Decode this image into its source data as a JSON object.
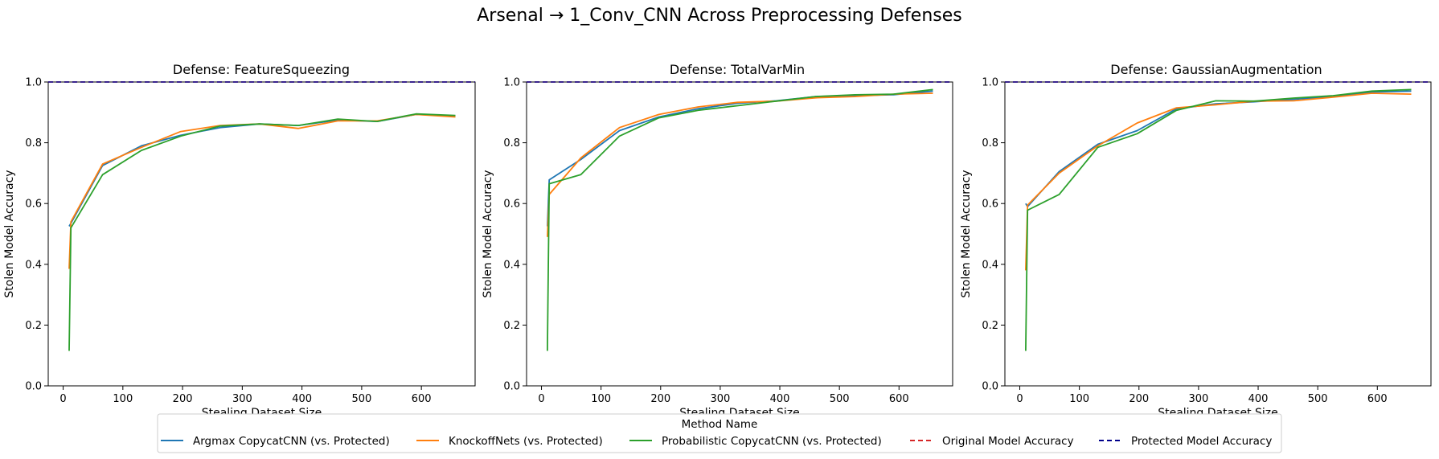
{
  "figure": {
    "title": "Arsenal → 1_Conv_CNN Across Preprocessing Defenses"
  },
  "legend": {
    "title": "Method Name",
    "placement": "bottom-center",
    "entries": [
      {
        "label": "Argmax CopycatCNN (vs. Protected)",
        "color": "#1f77b4",
        "style": "solid"
      },
      {
        "label": "KnockoffNets (vs. Protected)",
        "color": "#ff7f0e",
        "style": "solid"
      },
      {
        "label": "Probabilistic CopycatCNN (vs. Protected)",
        "color": "#2ca02c",
        "style": "solid"
      },
      {
        "label": "Original Model Accuracy",
        "color": "#d62728",
        "style": "dashed"
      },
      {
        "label": "Protected Model Accuracy",
        "color": "#00008b",
        "style": "dashed"
      }
    ]
  },
  "chart_data": [
    {
      "type": "line",
      "title": "Defense: FeatureSqueezing",
      "xlabel": "Stealing Dataset Size",
      "ylabel": "Stolen Model Accuracy",
      "xlim": [
        -25,
        690
      ],
      "ylim": [
        0.0,
        1.0
      ],
      "xticks": [
        "0",
        "100",
        "200",
        "300",
        "400",
        "500",
        "600"
      ],
      "yticks": [
        "0.0",
        "0.2",
        "0.4",
        "0.6",
        "0.8",
        "1.0"
      ],
      "grid": false,
      "reference_lines": [
        {
          "name": "Original Model Accuracy",
          "y": 1.0,
          "color": "#d62728"
        },
        {
          "name": "Protected Model Accuracy",
          "y": 1.0,
          "color": "#00008b"
        }
      ],
      "series": [
        {
          "name": "Argmax CopycatCNN (vs. Protected)",
          "color": "#1f77b4",
          "x": [
            10,
            13,
            66,
            131,
            197,
            263,
            329,
            394,
            460,
            526,
            591,
            657
          ],
          "y": [
            0.525,
            0.535,
            0.725,
            0.79,
            0.825,
            0.85,
            0.862,
            0.857,
            0.875,
            0.87,
            0.893,
            0.888
          ]
        },
        {
          "name": "KnockoffNets (vs. Protected)",
          "color": "#ff7f0e",
          "x": [
            10,
            13,
            66,
            131,
            197,
            263,
            329,
            394,
            460,
            526,
            591,
            657
          ],
          "y": [
            0.385,
            0.54,
            0.73,
            0.785,
            0.837,
            0.857,
            0.862,
            0.847,
            0.872,
            0.872,
            0.893,
            0.885
          ]
        },
        {
          "name": "Probabilistic CopycatCNN (vs. Protected)",
          "color": "#2ca02c",
          "x": [
            10,
            13,
            66,
            131,
            197,
            263,
            329,
            394,
            460,
            526,
            591,
            657
          ],
          "y": [
            0.115,
            0.52,
            0.695,
            0.775,
            0.822,
            0.855,
            0.862,
            0.857,
            0.878,
            0.87,
            0.895,
            0.89
          ]
        }
      ]
    },
    {
      "type": "line",
      "title": "Defense: TotalVarMin",
      "xlabel": "Stealing Dataset Size",
      "ylabel": "Stolen Model Accuracy",
      "xlim": [
        -25,
        690
      ],
      "ylim": [
        0.0,
        1.0
      ],
      "xticks": [
        "0",
        "100",
        "200",
        "300",
        "400",
        "500",
        "600"
      ],
      "yticks": [
        "0.0",
        "0.2",
        "0.4",
        "0.6",
        "0.8",
        "1.0"
      ],
      "grid": false,
      "reference_lines": [
        {
          "name": "Original Model Accuracy",
          "y": 1.0,
          "color": "#d62728"
        },
        {
          "name": "Protected Model Accuracy",
          "y": 1.0,
          "color": "#00008b"
        }
      ],
      "series": [
        {
          "name": "Argmax CopycatCNN (vs. Protected)",
          "color": "#1f77b4",
          "x": [
            10,
            13,
            66,
            131,
            197,
            263,
            329,
            394,
            460,
            526,
            591,
            657
          ],
          "y": [
            0.525,
            0.678,
            0.745,
            0.84,
            0.885,
            0.912,
            0.93,
            0.938,
            0.952,
            0.955,
            0.958,
            0.97
          ]
        },
        {
          "name": "KnockoffNets (vs. Protected)",
          "color": "#ff7f0e",
          "x": [
            10,
            13,
            66,
            131,
            197,
            263,
            329,
            394,
            460,
            526,
            591,
            657
          ],
          "y": [
            0.49,
            0.63,
            0.75,
            0.85,
            0.893,
            0.918,
            0.933,
            0.937,
            0.948,
            0.952,
            0.96,
            0.963
          ]
        },
        {
          "name": "Probabilistic CopycatCNN (vs. Protected)",
          "color": "#2ca02c",
          "x": [
            10,
            13,
            66,
            131,
            197,
            263,
            329,
            394,
            460,
            526,
            591,
            657
          ],
          "y": [
            0.115,
            0.665,
            0.695,
            0.822,
            0.882,
            0.907,
            0.922,
            0.937,
            0.952,
            0.958,
            0.96,
            0.975
          ]
        }
      ]
    },
    {
      "type": "line",
      "title": "Defense: GaussianAugmentation",
      "xlabel": "Stealing Dataset Size",
      "ylabel": "Stolen Model Accuracy",
      "xlim": [
        -25,
        690
      ],
      "ylim": [
        0.0,
        1.0
      ],
      "xticks": [
        "0",
        "100",
        "200",
        "300",
        "400",
        "500",
        "600"
      ],
      "yticks": [
        "0.0",
        "0.2",
        "0.4",
        "0.6",
        "0.8",
        "1.0"
      ],
      "grid": false,
      "reference_lines": [
        {
          "name": "Original Model Accuracy",
          "y": 1.0,
          "color": "#d62728"
        },
        {
          "name": "Protected Model Accuracy",
          "y": 1.0,
          "color": "#00008b"
        }
      ],
      "series": [
        {
          "name": "Argmax CopycatCNN (vs. Protected)",
          "color": "#1f77b4",
          "x": [
            10,
            13,
            66,
            131,
            197,
            263,
            329,
            394,
            460,
            526,
            591,
            657
          ],
          "y": [
            0.6,
            0.59,
            0.705,
            0.795,
            0.84,
            0.912,
            0.928,
            0.935,
            0.943,
            0.952,
            0.967,
            0.97
          ]
        },
        {
          "name": "KnockoffNets (vs. Protected)",
          "color": "#ff7f0e",
          "x": [
            10,
            13,
            66,
            131,
            197,
            263,
            329,
            394,
            460,
            526,
            591,
            657
          ],
          "y": [
            0.38,
            0.595,
            0.7,
            0.79,
            0.865,
            0.915,
            0.925,
            0.937,
            0.938,
            0.95,
            0.963,
            0.96
          ]
        },
        {
          "name": "Probabilistic CopycatCNN (vs. Protected)",
          "color": "#2ca02c",
          "x": [
            10,
            13,
            66,
            131,
            197,
            263,
            329,
            394,
            460,
            526,
            591,
            657
          ],
          "y": [
            0.115,
            0.578,
            0.63,
            0.785,
            0.83,
            0.907,
            0.938,
            0.937,
            0.947,
            0.955,
            0.97,
            0.975
          ]
        }
      ]
    }
  ]
}
